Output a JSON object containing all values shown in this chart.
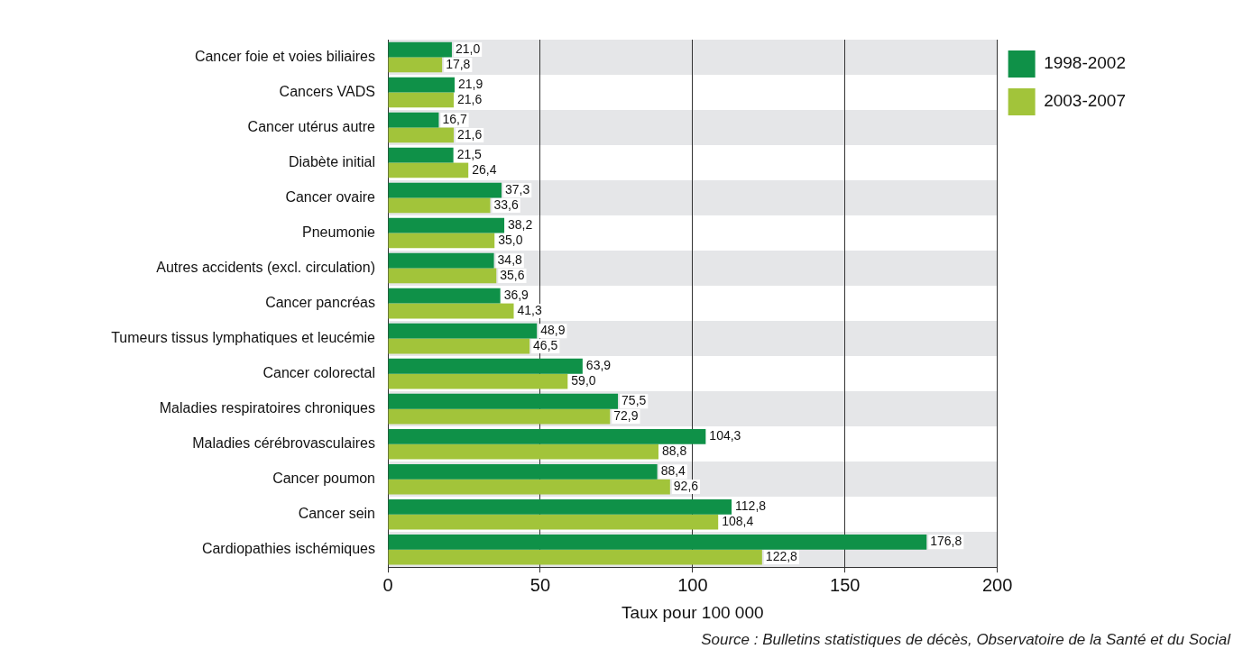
{
  "chart_data": {
    "type": "bar",
    "orientation": "horizontal",
    "xlabel": "Taux pour 100 000",
    "categories": [
      "Cancer foie et voies biliaires",
      "Cancers VADS",
      "Cancer utérus autre",
      "Diabète initial",
      "Cancer ovaire",
      "Pneumonie",
      "Autres accidents (excl. circulation)",
      "Cancer pancréas",
      "Tumeurs tissus lymphatiques et leucémie",
      "Cancer colorectal",
      "Maladies respiratoires chroniques",
      "Maladies cérébrovasculaires",
      "Cancer poumon",
      "Cancer sein",
      "Cardiopathies ischémiques"
    ],
    "series": [
      {
        "name": "1998-2002",
        "color": "#0f9148",
        "values": [
          21.0,
          21.9,
          16.7,
          21.5,
          37.3,
          38.2,
          34.8,
          36.9,
          48.9,
          63.9,
          75.5,
          104.3,
          88.4,
          112.8,
          176.8
        ],
        "value_labels": [
          "21,0",
          "21,9",
          "16,7",
          "21,5",
          "37,3",
          "38,2",
          "34,8",
          "36,9",
          "48,9",
          "63,9",
          "75,5",
          "104,3",
          "88,4",
          "112,8",
          "176,8"
        ]
      },
      {
        "name": "2003-2007",
        "color": "#a2c43a",
        "values": [
          17.8,
          21.6,
          21.6,
          26.4,
          33.6,
          35.0,
          35.6,
          41.3,
          46.5,
          59.0,
          72.9,
          88.8,
          92.6,
          108.4,
          122.8
        ],
        "value_labels": [
          "17,8",
          "21,6",
          "21,6",
          "26,4",
          "33,6",
          "35,0",
          "35,6",
          "41,3",
          "46,5",
          "59,0",
          "72,9",
          "88,8",
          "92,6",
          "108,4",
          "122,8"
        ]
      }
    ],
    "xlim": [
      0,
      200
    ],
    "xticks": [
      0,
      50,
      100,
      150,
      200
    ],
    "grid": "x",
    "legend": "top right",
    "annotations": [
      "Source : Bulletins statistiques de décès, Observatoire de la Santé et du Social"
    ]
  }
}
